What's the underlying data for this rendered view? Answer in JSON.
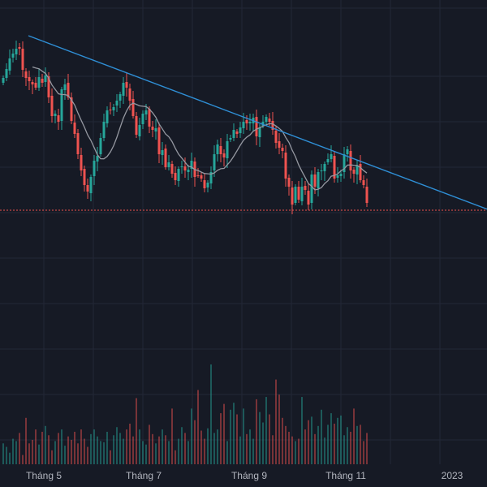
{
  "chart_data": {
    "type": "candlestick",
    "x_axis": {
      "tick_labels": [
        "Tháng 5",
        "Tháng 7",
        "Tháng 9",
        "Tháng 11",
        "2023"
      ]
    },
    "colors": {
      "background": "#161a25",
      "grid": "#232836",
      "up": "#26a69a",
      "down": "#ef5350",
      "moving_average": "#9598a1",
      "trendline": "#2f8fd6",
      "price_line": "#ef5350",
      "axis_text": "#b2b5be"
    },
    "grid": true,
    "price_line_level": 259,
    "trendline": {
      "from_bar": 3,
      "from_value": 44,
      "to_bar": 124,
      "to_value": 227
    },
    "closes": [
      96,
      85,
      72,
      66,
      60,
      60,
      86,
      96,
      100,
      104,
      108,
      95,
      102,
      93,
      120,
      143,
      140,
      150,
      110,
      104,
      120,
      149,
      165,
      190,
      210,
      228,
      236,
      218,
      198,
      192,
      170,
      150,
      136,
      135,
      132,
      124,
      116,
      102,
      108,
      124,
      143,
      166,
      154,
      140,
      136,
      156,
      160,
      158,
      190,
      185,
      206,
      200,
      214,
      222,
      208,
      205,
      210,
      209,
      198,
      218,
      216,
      220,
      232,
      225,
      212,
      190,
      178,
      190,
      194,
      174,
      170,
      160,
      165,
      157,
      150,
      152,
      150,
      145,
      168,
      157,
      150,
      144,
      150,
      160,
      176,
      182,
      186,
      220,
      230,
      252,
      230,
      246,
      230,
      234,
      252,
      215,
      230,
      212,
      210,
      202,
      196,
      190,
      220,
      216,
      214,
      190,
      184,
      210,
      214,
      204,
      222,
      228,
      250
    ],
    "volumes_relative": [
      0.18,
      0.15,
      0.1,
      0.22,
      0.2,
      0.27,
      0.08,
      0.4,
      0.18,
      0.21,
      0.3,
      0.17,
      0.28,
      0.33,
      0.25,
      0.12,
      0.2,
      0.27,
      0.3,
      0.16,
      0.24,
      0.21,
      0.28,
      0.18,
      0.3,
      0.22,
      0.15,
      0.26,
      0.3,
      0.24,
      0.2,
      0.19,
      0.28,
      0.12,
      0.25,
      0.32,
      0.27,
      0.22,
      0.3,
      0.35,
      0.24,
      0.57,
      0.3,
      0.2,
      0.17,
      0.34,
      0.26,
      0.18,
      0.24,
      0.3,
      0.25,
      0.2,
      0.48,
      0.12,
      0.22,
      0.32,
      0.27,
      0.2,
      0.48,
      0.38,
      0.64,
      0.29,
      0.22,
      0.31,
      0.86,
      0.27,
      0.3,
      0.44,
      0.52,
      0.2,
      0.47,
      0.53,
      0.43,
      0.24,
      0.48,
      0.26,
      0.3,
      0.22,
      0.56,
      0.45,
      0.36,
      0.58,
      0.43,
      0.25,
      0.73,
      0.6,
      0.4,
      0.33,
      0.28,
      0.24,
      0.2,
      0.22,
      0.58,
      0.3,
      0.38,
      0.41,
      0.26,
      0.33,
      0.47,
      0.23,
      0.34,
      0.44,
      0.35,
      0.4,
      0.42,
      0.25,
      0.32,
      0.28,
      0.48,
      0.33,
      0.34,
      0.2,
      0.27
    ]
  }
}
